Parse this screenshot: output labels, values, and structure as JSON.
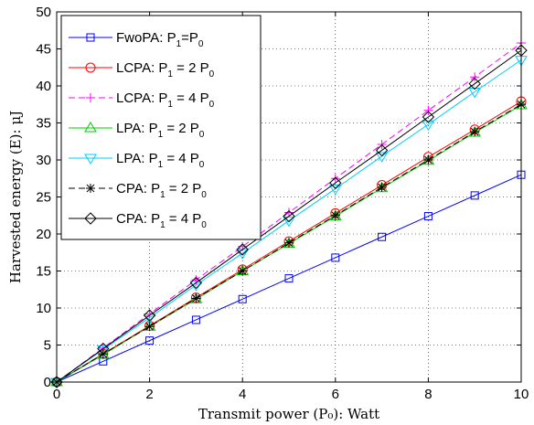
{
  "chart_data": {
    "type": "line",
    "xlabel": "Transmit power (P₀): Watt",
    "ylabel": "Harvested energy (E): μJ",
    "xlim": [
      0,
      10
    ],
    "ylim": [
      0,
      50
    ],
    "xticks": [
      "0",
      "2",
      "4",
      "6",
      "8",
      "10"
    ],
    "yticks": [
      "0",
      "5",
      "10",
      "15",
      "20",
      "25",
      "30",
      "35",
      "40",
      "45",
      "50"
    ],
    "grid": "dotted",
    "legend_position": "top-left",
    "x": [
      0,
      1,
      2,
      3,
      4,
      5,
      6,
      7,
      8,
      9,
      10
    ],
    "series": [
      {
        "name": "FwoPA: P1=P0",
        "legend": {
          "pre": "FwoPA: P",
          "sub1": "1",
          "mid": "=P",
          "sub2": "0"
        },
        "color": "#0000ff",
        "dash": "solid",
        "marker": "square",
        "values": [
          0,
          2.8,
          5.6,
          8.4,
          11.2,
          14.0,
          16.8,
          19.6,
          22.4,
          25.2,
          28.0
        ]
      },
      {
        "name": "LCPA: P1 = 2 P0",
        "legend": {
          "pre": "LCPA: P",
          "sub1": "1",
          "mid": " = 2 P",
          "sub2": "0"
        },
        "color": "#ff0000",
        "dash": "solid",
        "marker": "circle",
        "values": [
          0,
          3.8,
          7.6,
          11.4,
          15.2,
          19.0,
          22.8,
          26.6,
          30.4,
          34.1,
          37.9
        ]
      },
      {
        "name": "LCPA: P1 = 4 P0",
        "legend": {
          "pre": "LCPA: P",
          "sub1": "1",
          "mid": " = 4 P",
          "sub2": "0"
        },
        "color": "#ff00ff",
        "dash": "dashed",
        "marker": "plus",
        "values": [
          0,
          4.6,
          9.2,
          13.8,
          18.3,
          22.9,
          27.5,
          32.1,
          36.7,
          41.2,
          45.8
        ]
      },
      {
        "name": "LPA: P1 = 2 P0",
        "legend": {
          "pre": "LPA: P",
          "sub1": "1",
          "mid": " = 2 P",
          "sub2": "0"
        },
        "color": "#00cc00",
        "dash": "solid",
        "marker": "triangle-up",
        "values": [
          0,
          3.7,
          7.5,
          11.2,
          15.0,
          18.7,
          22.4,
          26.2,
          29.9,
          33.7,
          37.4
        ]
      },
      {
        "name": "LPA: P1 = 4 P0",
        "legend": {
          "pre": "LPA: P",
          "sub1": "1",
          "mid": " = 4 P",
          "sub2": "0"
        },
        "color": "#00ccff",
        "dash": "solid",
        "marker": "triangle-down",
        "values": [
          0,
          4.4,
          8.7,
          13.1,
          17.4,
          21.8,
          26.1,
          30.5,
          34.8,
          39.2,
          43.5
        ]
      },
      {
        "name": "CPA: P1 = 2 P0",
        "legend": {
          "pre": "CPA: P",
          "sub1": "1",
          "mid": " = 2 P",
          "sub2": "0"
        },
        "color": "#000000",
        "dash": "dashed",
        "marker": "asterisk",
        "values": [
          0,
          3.8,
          7.5,
          11.3,
          15.0,
          18.8,
          22.5,
          26.3,
          30.0,
          33.8,
          37.5
        ]
      },
      {
        "name": "CPA: P1 = 4 P0",
        "legend": {
          "pre": "CPA: P",
          "sub1": "1",
          "mid": " = 4 P",
          "sub2": "0"
        },
        "color": "#000000",
        "dash": "solid",
        "marker": "diamond",
        "values": [
          0,
          4.5,
          9.0,
          13.4,
          17.9,
          22.4,
          26.9,
          31.3,
          35.8,
          40.3,
          44.8
        ]
      }
    ]
  }
}
